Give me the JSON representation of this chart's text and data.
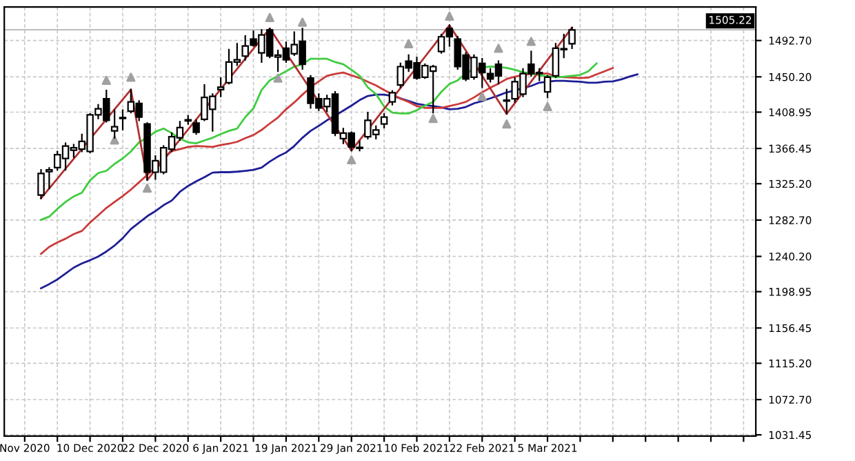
{
  "chart_data": {
    "type": "candlestick",
    "categories": [
      "Nov 2020",
      null,
      null,
      null,
      null,
      null,
      null,
      null,
      "10 Dec 2020",
      null,
      null,
      null,
      null,
      null,
      null,
      null,
      "22 Dec 2020",
      null,
      null,
      null,
      null,
      null,
      null,
      null,
      "6 Jan 2021",
      null,
      null,
      null,
      null,
      null,
      null,
      null,
      "19 Jan 2021",
      null,
      null,
      null,
      null,
      null,
      null,
      null,
      "29 Jan 2021",
      null,
      null,
      null,
      null,
      null,
      null,
      null,
      "10 Feb 2021",
      null,
      null,
      null,
      null,
      null,
      null,
      null,
      "22 Feb 2021",
      null,
      null,
      null,
      null,
      null,
      null,
      null,
      "5 Mar 2021",
      null,
      null,
      null,
      null,
      null,
      null,
      null,
      null,
      null,
      null,
      null,
      null,
      null,
      null,
      null,
      null,
      null,
      null,
      null,
      null,
      null,
      null,
      null,
      null,
      null
    ],
    "ohlc": [
      null,
      null,
      [
        1311.9,
        1341.4,
        1308.1,
        1337.1
      ],
      [
        1339.3,
        1343.6,
        1320.0,
        1341.4
      ],
      [
        1344.1,
        1362.9,
        1341.4,
        1359.1
      ],
      [
        1354.8,
        1372.5,
        1341.4,
        1369.3
      ],
      [
        1364.5,
        1370.9,
        1356.4,
        1367.2
      ],
      [
        1365.6,
        1382.7,
        1362.9,
        1374.7
      ],
      [
        1362.9,
        1406.9,
        1361.8,
        1405.8
      ],
      [
        1405.8,
        1417.6,
        1401.5,
        1412.8
      ],
      [
        1424.6,
        1434.3,
        1397.8,
        1399.4
      ],
      [
        1387.0,
        1411.2,
        1379.0,
        1391.9
      ],
      [
        1401.5,
        1411.2,
        1388.7,
        1402.6
      ],
      [
        1410.1,
        1435.3,
        1408.5,
        1420.9
      ],
      [
        1419.2,
        1421.9,
        1399.4,
        1403.1
      ],
      [
        1395.1,
        1396.2,
        1329.6,
        1338.7
      ],
      [
        1338.7,
        1357.5,
        1330.7,
        1352.2
      ],
      [
        1338.7,
        1369.3,
        1337.1,
        1367.2
      ],
      [
        1365.6,
        1384.4,
        1362.9,
        1380.1
      ],
      [
        1379.0,
        1397.8,
        1376.3,
        1390.8
      ],
      [
        1398.8,
        1404.8,
        1395.1,
        1399.9
      ],
      [
        1396.2,
        1399.4,
        1383.3,
        1385.4
      ],
      [
        1400.5,
        1440.7,
        1399.4,
        1426.2
      ],
      [
        1412.3,
        1430.0,
        1387.0,
        1427.3
      ],
      [
        1435.3,
        1448.8,
        1427.3,
        1438.0
      ],
      [
        1443.4,
        1482.0,
        1442.3,
        1467.5
      ],
      [
        1467.5,
        1489.0,
        1463.8,
        1470.2
      ],
      [
        1474.5,
        1498.1,
        1470.2,
        1486.3
      ],
      [
        1494.4,
        1503.5,
        1486.3,
        1487.4
      ],
      [
        1478.3,
        1505.1,
        1467.5,
        1499.2
      ],
      [
        1505.1,
        1506.7,
        1472.9,
        1474.5
      ],
      [
        1473.4,
        1481.0,
        1456.8,
        1475.6
      ],
      [
        1483.6,
        1490.6,
        1467.5,
        1470.2
      ],
      [
        1477.2,
        1502.4,
        1475.6,
        1487.9
      ],
      [
        1491.7,
        1506.7,
        1459.5,
        1464.9
      ],
      [
        1448.8,
        1451.4,
        1413.9,
        1419.2
      ],
      [
        1424.6,
        1430.0,
        1411.2,
        1413.9
      ],
      [
        1415.5,
        1428.4,
        1410.1,
        1424.6
      ],
      [
        1430.0,
        1432.7,
        1381.7,
        1384.4
      ],
      [
        1377.9,
        1389.7,
        1372.5,
        1384.4
      ],
      [
        1384.4,
        1385.4,
        1364.0,
        1368.3
      ],
      [
        1366.6,
        1374.7,
        1364.0,
        1367.7
      ],
      [
        1380.1,
        1408.5,
        1377.9,
        1399.4
      ],
      [
        1382.7,
        1392.4,
        1377.9,
        1388.1
      ],
      [
        1395.1,
        1406.9,
        1390.8,
        1403.1
      ],
      [
        1420.9,
        1433.7,
        1417.6,
        1431.6
      ],
      [
        1440.7,
        1465.9,
        1438.0,
        1462.2
      ],
      [
        1468.6,
        1475.6,
        1456.8,
        1460.6
      ],
      [
        1466.5,
        1472.9,
        1447.7,
        1448.8
      ],
      [
        1449.8,
        1464.9,
        1448.8,
        1463.3
      ],
      [
        1456.8,
        1463.3,
        1408.5,
        1462.2
      ],
      [
        1479.9,
        1499.7,
        1478.3,
        1497.1
      ],
      [
        1506.7,
        1510.5,
        1486.3,
        1497.1
      ],
      [
        1494.4,
        1497.1,
        1459.5,
        1462.2
      ],
      [
        1475.6,
        1478.3,
        1446.1,
        1447.7
      ],
      [
        1449.8,
        1475.6,
        1447.7,
        1472.9
      ],
      [
        1465.9,
        1471.3,
        1438.0,
        1455.2
      ],
      [
        1454.1,
        1459.5,
        1444.5,
        1447.7
      ],
      [
        1464.9,
        1468.6,
        1442.3,
        1451.4
      ],
      [
        1421.9,
        1435.3,
        1406.9,
        1423.0
      ],
      [
        1424.6,
        1448.8,
        1420.9,
        1444.5
      ],
      [
        1430.0,
        1459.5,
        1427.3,
        1454.1
      ],
      [
        1464.9,
        1479.9,
        1451.4,
        1454.1
      ],
      [
        1454.1,
        1459.5,
        1446.1,
        1455.2
      ],
      [
        1432.7,
        1451.4,
        1426.2,
        1449.8
      ],
      [
        1451.4,
        1489.0,
        1449.8,
        1483.6
      ],
      [
        1482.0,
        1499.7,
        1472.9,
        1483.1
      ],
      [
        1489.0,
        1507.8,
        1483.6,
        1505.1
      ],
      null,
      null,
      null,
      null,
      null,
      null,
      null,
      null,
      null,
      null,
      null,
      null,
      null,
      null,
      null,
      null,
      null,
      null,
      null,
      null,
      null,
      null
    ],
    "series": [
      {
        "type": "line",
        "color": "#1e1e96",
        "values": [
          null,
          null,
          1202.9,
          1207.8,
          1213.2,
          1220.1,
          1227.1,
          1231.9,
          1235.7,
          1240.0,
          1245.9,
          1252.9,
          1261.5,
          1272.2,
          1279.7,
          1287.2,
          1293.1,
          1300.1,
          1305.5,
          1315.7,
          1322.6,
          1328.0,
          1332.8,
          1338.2,
          1338.7,
          1338.7,
          1339.3,
          1340.3,
          1341.4,
          1344.1,
          1351.1,
          1357.0,
          1361.8,
          1369.3,
          1379.0,
          1387.0,
          1392.9,
          1399.4,
          1404.8,
          1410.7,
          1416.6,
          1423.0,
          1427.8,
          1429.4,
          1429.4,
          1427.8,
          1425.1,
          1421.9,
          1418.7,
          1417.1,
          1416.0,
          1414.4,
          1412.3,
          1412.8,
          1414.9,
          1419.2,
          1421.9,
          1425.1,
          1428.4,
          1432.1,
          1434.3,
          1437.0,
          1439.6,
          1443.4,
          1444.5,
          1445.5,
          1445.5,
          1445.0,
          1444.5,
          1443.4,
          1443.4,
          1444.5,
          1445.0,
          1447.2,
          1450.4,
          1453.1,
          null,
          null,
          null,
          null,
          null,
          null,
          null,
          null,
          null,
          null,
          null,
          null,
          null,
          null
        ]
      },
      {
        "type": "line",
        "color": "#cc3a3a",
        "values": [
          null,
          null,
          1243.2,
          1251.3,
          1256.6,
          1260.9,
          1266.3,
          1270.0,
          1279.7,
          1288.3,
          1296.9,
          1303.9,
          1310.8,
          1318.3,
          1326.9,
          1335.5,
          1344.6,
          1354.8,
          1363.4,
          1365.6,
          1368.3,
          1369.3,
          1368.8,
          1368.3,
          1370.4,
          1372.0,
          1374.2,
          1378.5,
          1382.2,
          1388.1,
          1395.6,
          1402.6,
          1412.3,
          1420.3,
          1429.4,
          1438.0,
          1445.0,
          1451.4,
          1453.6,
          1455.2,
          1452.0,
          1448.8,
          1444.5,
          1440.2,
          1434.8,
          1430.0,
          1424.6,
          1420.9,
          1416.0,
          1413.9,
          1413.9,
          1413.9,
          1416.0,
          1418.2,
          1420.9,
          1426.2,
          1432.1,
          1437.5,
          1442.3,
          1447.7,
          1450.4,
          1452.5,
          1453.6,
          1454.1,
          1454.1,
          1450.9,
          1449.8,
          1449.3,
          1448.8,
          1449.3,
          1453.1,
          1456.8,
          1460.6,
          null,
          null,
          null,
          null,
          null,
          null,
          null,
          null,
          null,
          null,
          null,
          null,
          null,
          null,
          null,
          null,
          null
        ]
      },
      {
        "type": "line",
        "color": "#40cc40",
        "values": [
          null,
          null,
          1282.9,
          1286.7,
          1295.8,
          1303.9,
          1310.3,
          1314.6,
          1329.1,
          1337.7,
          1340.3,
          1348.4,
          1354.8,
          1362.9,
          1373.6,
          1379.0,
          1386.0,
          1389.7,
          1384.4,
          1377.9,
          1373.6,
          1372.5,
          1375.8,
          1379.0,
          1383.3,
          1387.0,
          1389.7,
          1403.1,
          1413.3,
          1434.8,
          1446.1,
          1451.4,
          1456.8,
          1462.2,
          1464.9,
          1471.3,
          1471.3,
          1471.3,
          1467.5,
          1464.9,
          1458.4,
          1451.4,
          1438.0,
          1430.0,
          1415.5,
          1408.5,
          1407.4,
          1407.4,
          1411.2,
          1416.6,
          1420.9,
          1432.7,
          1441.8,
          1446.1,
          1454.1,
          1459.5,
          1461.1,
          1462.2,
          1461.6,
          1460.6,
          1458.4,
          1455.7,
          1454.1,
          1452.0,
          1450.9,
          1449.8,
          1450.4,
          1451.4,
          1452.5,
          1456.8,
          1465.9,
          null,
          null,
          null,
          null,
          null,
          null,
          null,
          null,
          null,
          null,
          null,
          null,
          null,
          null,
          null,
          null,
          null,
          null,
          null
        ]
      },
      {
        "type": "line",
        "color": "#b03030",
        "values": [
          null,
          null,
          1308.1,
          1319.7,
          1331.2,
          1342.8,
          1354.4,
          1365.9,
          1377.5,
          1389.0,
          1400.6,
          1412.2,
          1423.7,
          1435.3,
          1382.5,
          1329.6,
          1341.4,
          1353.2,
          1365.0,
          1376.8,
          1388.6,
          1400.4,
          1412.2,
          1424.1,
          1435.9,
          1447.7,
          1459.5,
          1471.3,
          1483.1,
          1494.9,
          1506.7,
          1492.4,
          1478.2,
          1463.9,
          1449.6,
          1435.4,
          1421.1,
          1406.8,
          1392.5,
          1378.3,
          1364.0,
          1376.2,
          1388.4,
          1400.6,
          1412.8,
          1425.0,
          1437.0,
          1449.3,
          1461.5,
          1473.7,
          1485.9,
          1498.3,
          1510.5,
          1495.7,
          1480.9,
          1466.1,
          1451.3,
          1436.5,
          1421.7,
          1406.9,
          1419.5,
          1432.1,
          1444.7,
          1457.3,
          1470.0,
          1482.6,
          1495.2,
          1507.8,
          null,
          null,
          null,
          null,
          null,
          null,
          null,
          null,
          null,
          null,
          null,
          null,
          null,
          null,
          null,
          null,
          null,
          null,
          null,
          null,
          null,
          null
        ]
      },
      {
        "type": "scatter",
        "color": "#a0a0a0",
        "marker": "triangle",
        "values": [
          null,
          null,
          null,
          null,
          null,
          null,
          null,
          null,
          null,
          null,
          1446.1,
          null,
          null,
          1449.8,
          null,
          null,
          null,
          null,
          null,
          null,
          null,
          null,
          null,
          null,
          null,
          null,
          null,
          null,
          null,
          null,
          1519.6,
          null,
          null,
          null,
          1514.2,
          null,
          null,
          null,
          null,
          null,
          null,
          null,
          null,
          null,
          null,
          null,
          null,
          1489.0,
          null,
          null,
          null,
          null,
          1521.2,
          null,
          null,
          null,
          null,
          null,
          1483.6,
          null,
          null,
          null,
          1491.7,
          null,
          null,
          null,
          null,
          null,
          null,
          null,
          null,
          null,
          null,
          null,
          null,
          null,
          null,
          null,
          null,
          null,
          null,
          null,
          null,
          null,
          null,
          null,
          null,
          null,
          null,
          null
        ]
      },
      {
        "type": "scatter",
        "color": "#a0a0a0",
        "marker": "triangle",
        "values": [
          null,
          null,
          null,
          null,
          null,
          null,
          null,
          null,
          null,
          null,
          null,
          1376.3,
          null,
          null,
          null,
          1320.0,
          null,
          null,
          null,
          null,
          null,
          null,
          null,
          null,
          null,
          null,
          null,
          null,
          null,
          null,
          null,
          1448.8,
          null,
          null,
          null,
          null,
          null,
          null,
          null,
          null,
          1353.2,
          null,
          null,
          null,
          null,
          null,
          null,
          null,
          null,
          null,
          1401.5,
          null,
          null,
          null,
          null,
          null,
          1427.3,
          null,
          null,
          1395.1,
          null,
          null,
          null,
          null,
          1415.5,
          null,
          null,
          null,
          null,
          null,
          null,
          null,
          null,
          null,
          null,
          null,
          null,
          null,
          null,
          null,
          null,
          null,
          null,
          null,
          null,
          null,
          null,
          null,
          null,
          null
        ]
      }
    ],
    "ylim": [
      1030,
      1532
    ],
    "yticks": [
      {
        "value": 1031.45,
        "label": "1031.45"
      },
      {
        "value": 1072.7,
        "label": "1072.70"
      },
      {
        "value": 1115.2,
        "label": "1115.20"
      },
      {
        "value": 1156.45,
        "label": "1156.45"
      },
      {
        "value": 1198.95,
        "label": "1198.95"
      },
      {
        "value": 1240.2,
        "label": "1240.20"
      },
      {
        "value": 1282.7,
        "label": "1282.70"
      },
      {
        "value": 1325.2,
        "label": "1325.20"
      },
      {
        "value": 1366.45,
        "label": "1366.45"
      },
      {
        "value": 1408.95,
        "label": "1408.95"
      },
      {
        "value": 1450.2,
        "label": "1450.20"
      },
      {
        "value": 1492.7,
        "label": "1492.70"
      }
    ],
    "ref_lines": [
      {
        "axis": "y",
        "value": 1505.22,
        "label": "1505.22",
        "color": "#c0c0c0"
      }
    ],
    "grid": true
  }
}
